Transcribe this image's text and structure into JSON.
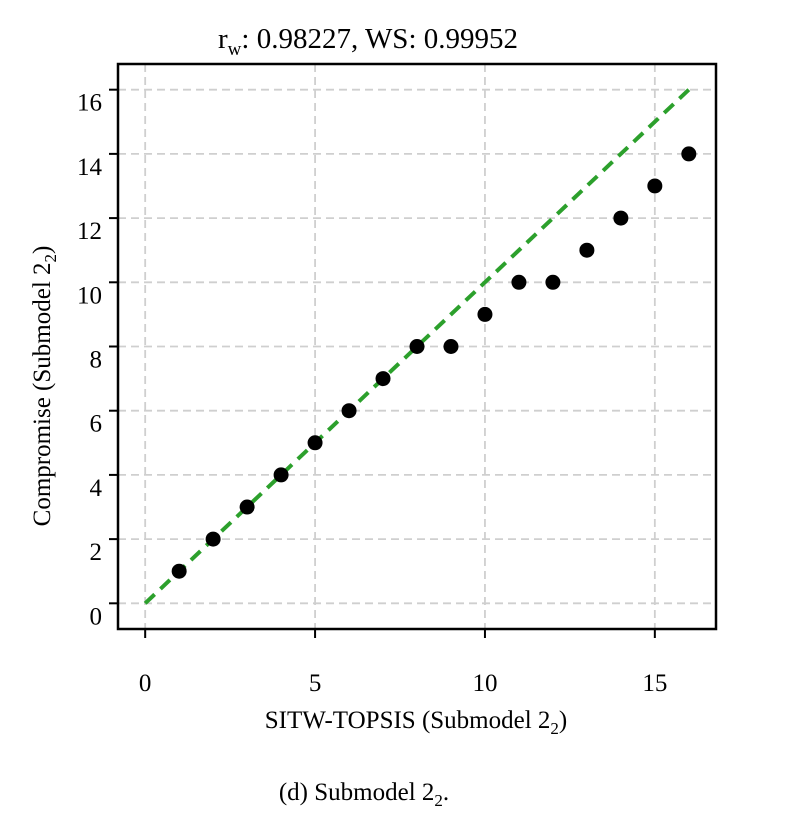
{
  "chart_data": {
    "type": "scatter",
    "title_parts": {
      "rw_base": "r",
      "rw_sub": "w",
      "rw_rest": ": 0.98227,  WS: 0.99952"
    },
    "xlabel_parts": {
      "base": "SITW-TOPSIS (Submodel 2",
      "sub": "2",
      "close": ")"
    },
    "ylabel_parts": {
      "base": "Compromise (Submodel 2",
      "sub": "2",
      "close": ")"
    },
    "caption_parts": {
      "base": "(d)  Submodel 2",
      "sub": "2",
      "close": "."
    },
    "xlim": [
      -0.8,
      16.8
    ],
    "ylim": [
      -0.8,
      16.8
    ],
    "xticks": [
      0,
      5,
      10,
      15
    ],
    "yticks": [
      0,
      2,
      4,
      6,
      8,
      10,
      12,
      14,
      16
    ],
    "grid": true,
    "points": {
      "color": "#000000",
      "x": [
        1,
        2,
        3,
        4,
        5,
        6,
        7,
        8,
        9,
        10,
        11,
        12,
        13,
        14,
        15,
        16
      ],
      "y": [
        1,
        2,
        3,
        4,
        5,
        6,
        7,
        8,
        8,
        9,
        10,
        10,
        11,
        12,
        13,
        14
      ]
    },
    "reference_line": {
      "x": [
        0,
        16
      ],
      "y": [
        0,
        16
      ],
      "color": "#2ca02c",
      "style": "dashed"
    }
  }
}
